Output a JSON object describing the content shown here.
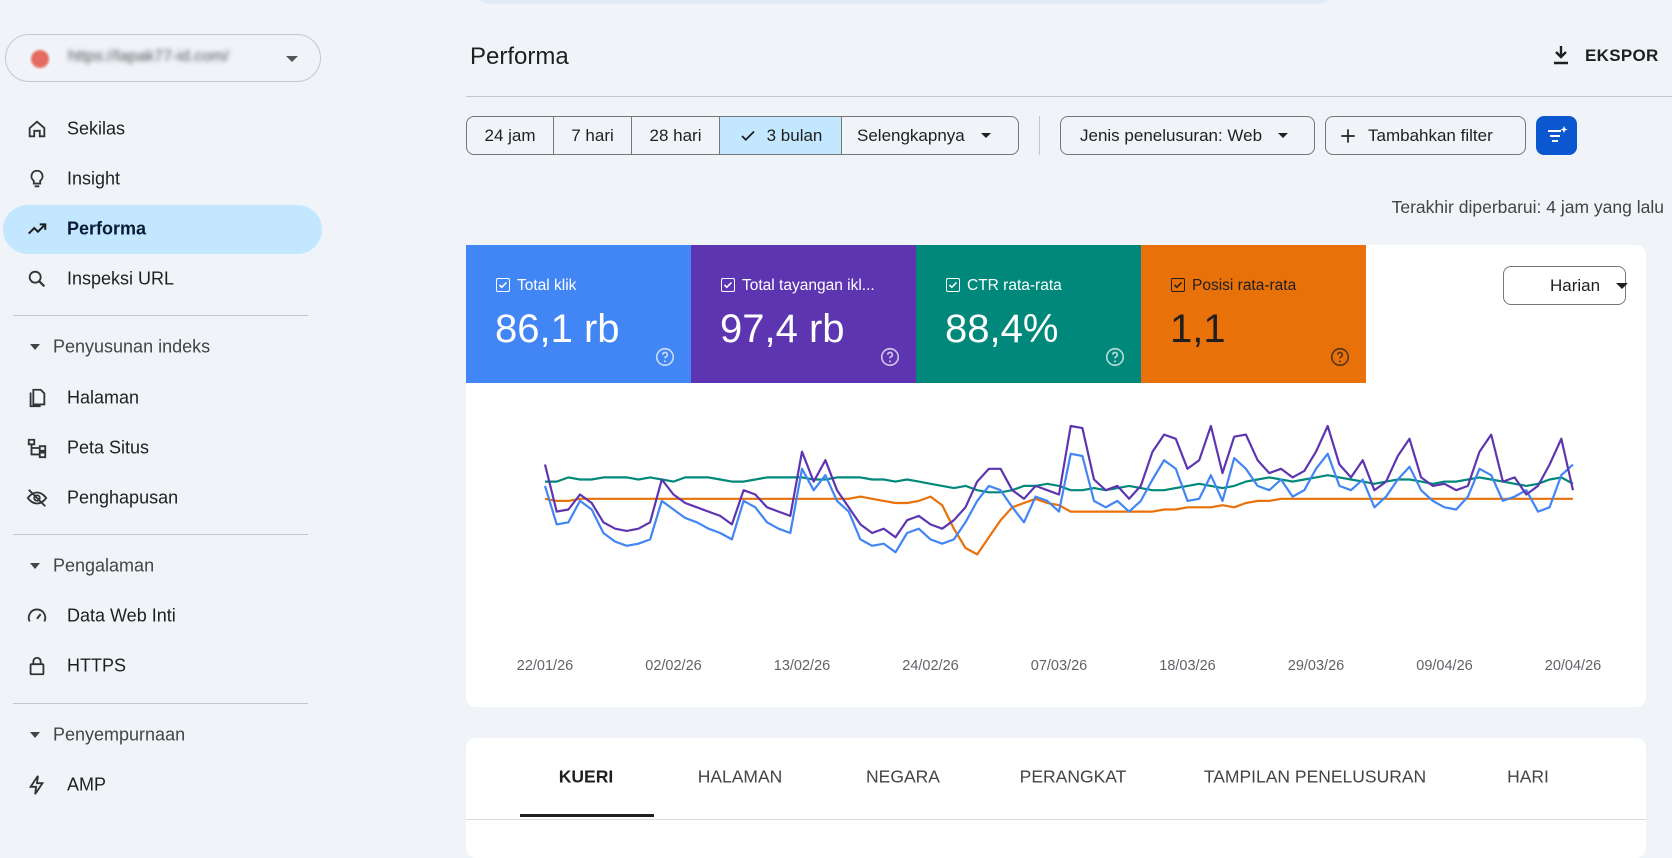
{
  "sidebar": {
    "property": "https://lapak77-id.com/",
    "nav": [
      "Sekilas",
      "Insight",
      "Performa",
      "Inspeksi URL"
    ],
    "sections": [
      {
        "title": "Penyusunan indeks",
        "items": [
          "Halaman",
          "Peta Situs",
          "Penghapusan"
        ]
      },
      {
        "title": "Pengalaman",
        "items": [
          "Data Web Inti",
          "HTTPS"
        ]
      },
      {
        "title": "Penyempurnaan",
        "items": [
          "AMP"
        ]
      }
    ]
  },
  "header": {
    "title": "Performa",
    "export": "EKSPOR"
  },
  "filters": {
    "ranges": [
      "24 jam",
      "7 hari",
      "28 hari",
      "3 bulan",
      "Selengkapnya"
    ],
    "selected": "3 bulan",
    "search_type": "Jenis penelusuran: Web",
    "add_filter": "Tambahkan filter"
  },
  "updated": "Terakhir diperbarui: 4 jam yang lalu",
  "granularity": "Harian",
  "chart_data": {
    "type": "line",
    "categories": [
      "22/01/26",
      null,
      null,
      null,
      null,
      null,
      null,
      null,
      null,
      null,
      null,
      "02/02/26",
      null,
      null,
      null,
      null,
      null,
      null,
      null,
      null,
      null,
      null,
      "13/02/26",
      null,
      null,
      null,
      null,
      null,
      null,
      null,
      null,
      null,
      null,
      "24/02/26",
      null,
      null,
      null,
      null,
      null,
      null,
      null,
      null,
      null,
      null,
      "07/03/26",
      null,
      null,
      null,
      null,
      null,
      null,
      null,
      null,
      null,
      null,
      "18/03/26",
      null,
      null,
      null,
      null,
      null,
      null,
      null,
      null,
      null,
      null,
      "29/03/26",
      null,
      null,
      null,
      null,
      null,
      null,
      null,
      null,
      null,
      null,
      "09/04/26",
      null,
      null,
      null,
      null,
      null,
      null,
      null,
      null,
      null,
      null,
      "20/04/26"
    ],
    "ylim": [
      0,
      100
    ],
    "series": [
      {
        "name": "Posisi rata-rata",
        "total": "1,1",
        "color": "#e8710a",
        "values": [
          66,
          65,
          65,
          66,
          66,
          66,
          66,
          66,
          66,
          66,
          66,
          66,
          66,
          66,
          66,
          66,
          66,
          66,
          66,
          66,
          66,
          66,
          66,
          66,
          66,
          66,
          66,
          67,
          66,
          65,
          64,
          64,
          65,
          67,
          63,
          52,
          43,
          40,
          48,
          56,
          62,
          64,
          66,
          64,
          63,
          60,
          60,
          60,
          60,
          60,
          60,
          60,
          60,
          61,
          61,
          62,
          62,
          62,
          63,
          62,
          64,
          65,
          65,
          66,
          66,
          66,
          66,
          66,
          66,
          66,
          66,
          66,
          66,
          66,
          66,
          66,
          66,
          66,
          66,
          66,
          66,
          66,
          66,
          66,
          66,
          66,
          66,
          66,
          66
        ]
      },
      {
        "name": "CTR rata-rata",
        "total": "88,4%",
        "color": "#00897b",
        "values": [
          74,
          74,
          76,
          75,
          75,
          76,
          76,
          76,
          75,
          76,
          75,
          74,
          76,
          76,
          76,
          75,
          74,
          74,
          75,
          76,
          76,
          76,
          76,
          75,
          75,
          76,
          76,
          76,
          75,
          75,
          74,
          75,
          74,
          73,
          72,
          71,
          72,
          70,
          69,
          69,
          70,
          72,
          72,
          73,
          72,
          70,
          70,
          71,
          70,
          71,
          72,
          71,
          70,
          70,
          71,
          72,
          73,
          72,
          71,
          72,
          74,
          75,
          76,
          75,
          74,
          75,
          76,
          77,
          76,
          75,
          74,
          73,
          74,
          75,
          75,
          74,
          73,
          74,
          74,
          75,
          76,
          75,
          74,
          73,
          72,
          73,
          75,
          76,
          73
        ]
      },
      {
        "name": "Total klik",
        "total": "86,1 rb",
        "color": "#4285f4",
        "values": [
          72,
          54,
          55,
          65,
          61,
          50,
          46,
          44,
          45,
          47,
          65,
          61,
          57,
          55,
          52,
          50,
          47,
          65,
          62,
          55,
          52,
          50,
          80,
          70,
          77,
          65,
          60,
          47,
          44,
          45,
          41,
          50,
          52,
          47,
          45,
          47,
          55,
          65,
          72,
          70,
          62,
          55,
          67,
          65,
          60,
          87,
          86,
          65,
          62,
          65,
          60,
          65,
          75,
          84,
          80,
          65,
          66,
          77,
          65,
          85,
          80,
          72,
          70,
          75,
          67,
          70,
          80,
          87,
          72,
          70,
          75,
          62,
          67,
          75,
          81,
          70,
          65,
          62,
          61,
          67,
          80,
          77,
          65,
          67,
          70,
          60,
          62,
          77,
          82
        ]
      },
      {
        "name": "Total tayangan ikl...",
        "total": "97,4 rb",
        "color": "#5e35b1",
        "values": [
          82,
          60,
          61,
          68,
          64,
          55,
          52,
          51,
          52,
          55,
          75,
          68,
          64,
          62,
          60,
          58,
          54,
          70,
          68,
          62,
          60,
          58,
          88,
          74,
          84,
          70,
          62,
          54,
          50,
          52,
          48,
          56,
          58,
          54,
          52,
          56,
          62,
          74,
          80,
          80,
          70,
          66,
          72,
          70,
          68,
          100,
          99,
          75,
          70,
          72,
          66,
          72,
          88,
          96,
          94,
          80,
          84,
          100,
          78,
          95,
          96,
          84,
          78,
          80,
          76,
          79,
          88,
          100,
          82,
          76,
          84,
          70,
          74,
          86,
          94,
          76,
          72,
          73,
          70,
          72,
          88,
          96,
          74,
          76,
          68,
          72,
          82,
          94,
          70
        ]
      }
    ]
  },
  "tabs": [
    "KUERI",
    "HALAMAN",
    "NEGARA",
    "PERANGKAT",
    "TAMPILAN PENELUSURAN",
    "HARI"
  ]
}
